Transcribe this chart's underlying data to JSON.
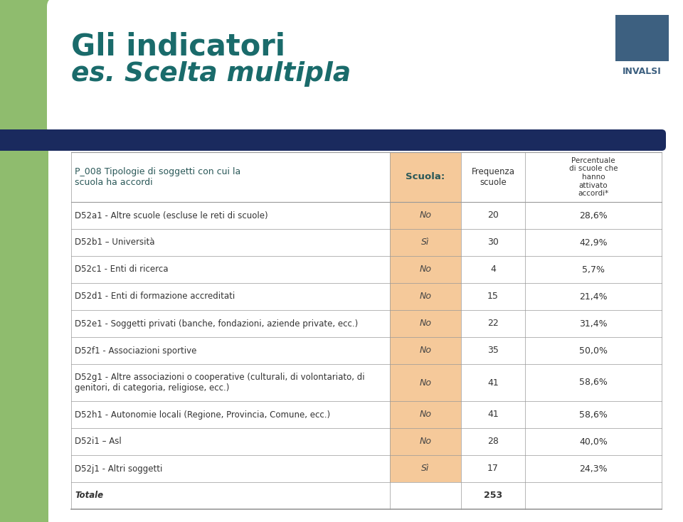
{
  "title_line1": "Gli indicatori",
  "title_line2": "es. Scelta multipla",
  "title_color": "#1a6b6b",
  "bg_color": "#f0f0f0",
  "white_bg": "#ffffff",
  "green_sidebar_color": "#8fbc6e",
  "dark_bar_color": "#1a2a5e",
  "header_label_col": "Scuola:",
  "header_freq_col": "Frequenza\nscuole",
  "header_pct_col": "Percentuale\ndi scuole che\nhanno\nattivato\naccordi*",
  "scuola_col_color": "#f5c99a",
  "rows": [
    {
      "label": "D52a1 - Altre scuole (escluse le reti di scuole)",
      "scuola": "No",
      "freq": "20",
      "pct": "28,6%",
      "is_total": false
    },
    {
      "label": "D52b1 – Università",
      "scuola": "Sì",
      "freq": "30",
      "pct": "42,9%",
      "is_total": false
    },
    {
      "label": "D52c1 - Enti di ricerca",
      "scuola": "No",
      "freq": "4",
      "pct": "5,7%",
      "is_total": false
    },
    {
      "label": "D52d1 - Enti di formazione accreditati",
      "scuola": "No",
      "freq": "15",
      "pct": "21,4%",
      "is_total": false
    },
    {
      "label": "D52e1 - Soggetti privati (banche, fondazioni, aziende private, ecc.)",
      "scuola": "No",
      "freq": "22",
      "pct": "31,4%",
      "is_total": false
    },
    {
      "label": "D52f1 - Associazioni sportive",
      "scuola": "No",
      "freq": "35",
      "pct": "50,0%",
      "is_total": false
    },
    {
      "label": "D52g1 - Altre associazioni o cooperative (culturali, di volontariato, di\ngenitori, di categoria, religiose, ecc.)",
      "scuola": "No",
      "freq": "41",
      "pct": "58,6%",
      "is_total": false
    },
    {
      "label": "D52h1 - Autonomie locali (Regione, Provincia, Comune, ecc.)",
      "scuola": "No",
      "freq": "41",
      "pct": "58,6%",
      "is_total": false
    },
    {
      "label": "D52i1 – Asl",
      "scuola": "No",
      "freq": "28",
      "pct": "40,0%",
      "is_total": false
    },
    {
      "label": "D52j1 - Altri soggetti",
      "scuola": "Sì",
      "freq": "17",
      "pct": "24,3%",
      "is_total": false
    },
    {
      "label": "Totale",
      "scuola": "",
      "freq": "253",
      "pct": "",
      "is_total": true
    }
  ],
  "question_label": "P_008 Tipologie di soggetti con cui la\nscuola ha accordi",
  "invalsi_color": "#3d6080",
  "invalsi_text": "INVALSI"
}
